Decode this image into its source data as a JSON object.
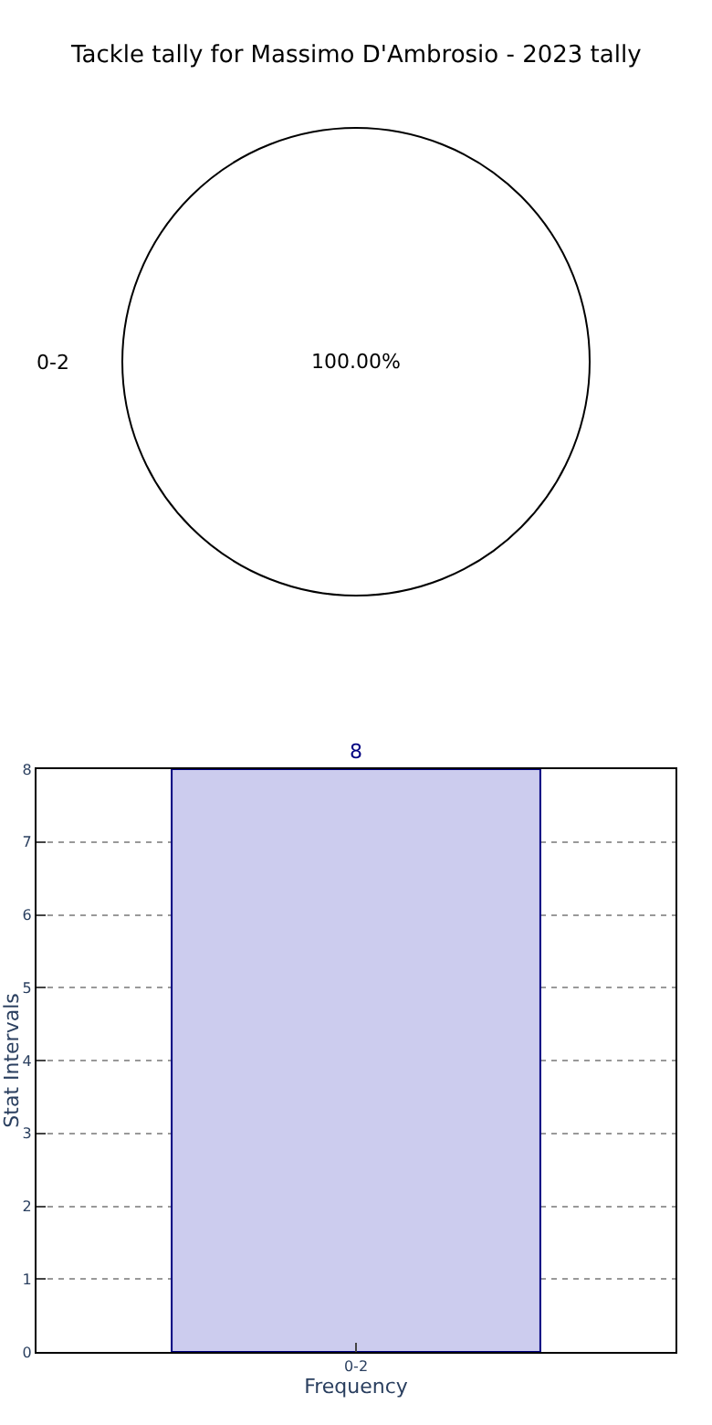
{
  "chart_data": [
    {
      "type": "pie",
      "title": "Tackle tally for Massimo D'Ambrosio - 2023 tally",
      "categories": [
        "0-2"
      ],
      "values": [
        100
      ],
      "colors": [
        "#ffffff"
      ],
      "value_labels": [
        "100.00%"
      ]
    },
    {
      "type": "bar",
      "categories": [
        "0-2"
      ],
      "values": [
        8
      ],
      "color": "#ccccee",
      "xlabel": "Frequency",
      "ylabel": "Stat Intervals",
      "ylim": [
        0,
        8
      ],
      "yticks": [
        0,
        1,
        2,
        3,
        4,
        5,
        6,
        7,
        8
      ],
      "grid": true,
      "data_labels": true
    }
  ]
}
